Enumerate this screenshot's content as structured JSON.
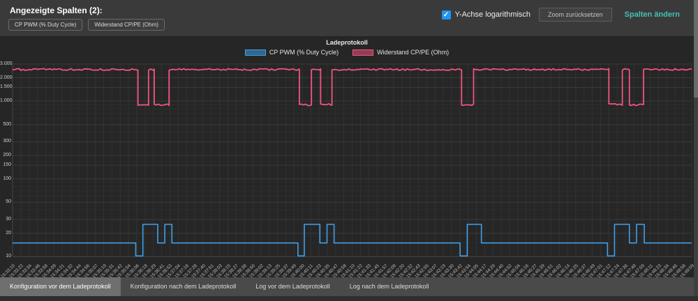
{
  "header": {
    "title": "Angezeigte Spalten (2):",
    "chips": [
      "CP PWM (% Duty Cycle)",
      "Widerstand CP/PE (Ohm)"
    ],
    "log_checkbox_label": "Y-Achse logarithmisch",
    "log_checkbox_checked": true,
    "checkmark": "✓",
    "zoom_reset_label": "Zoom zurücksetzen",
    "change_columns_label": "Spalten ändern",
    "accent_color": "#45c0b4",
    "checkbox_color": "#2196f3"
  },
  "tabs": {
    "items": [
      {
        "label": "Konfiguration vor dem Ladeprotokoll",
        "active": true
      },
      {
        "label": "Konfiguration nach dem Ladeprotokoll",
        "active": false
      },
      {
        "label": "Log vor dem Ladeprotokoll",
        "active": false
      },
      {
        "label": "Log nach dem Ladeprotokoll",
        "active": false
      }
    ]
  },
  "chart_data": {
    "type": "line",
    "title": "Ladeprotokoll",
    "legend_position": "top",
    "y_axis": {
      "scale": "log",
      "min": 10,
      "max": 3000,
      "ticks": [
        {
          "value": 3000,
          "label": "3.000"
        },
        {
          "value": 2000,
          "label": "2.000"
        },
        {
          "value": 1500,
          "label": "1.500"
        },
        {
          "value": 1000,
          "label": "1.000"
        },
        {
          "value": 500,
          "label": "500"
        },
        {
          "value": 300,
          "label": "300"
        },
        {
          "value": 200,
          "label": "200"
        },
        {
          "value": 150,
          "label": "150"
        },
        {
          "value": 100,
          "label": "100"
        },
        {
          "value": 50,
          "label": "50"
        },
        {
          "value": 30,
          "label": "30"
        },
        {
          "value": 20,
          "label": "20"
        },
        {
          "value": 10,
          "label": "10"
        }
      ],
      "minor_ticks": [
        15,
        40,
        60,
        70,
        80,
        90,
        400,
        600,
        700,
        800,
        900
      ]
    },
    "x_labels": [
      "15:33:10",
      "15:33:22",
      "15:33:34",
      "15:33:46",
      "15:33:58",
      "15:34:09",
      "15:34:21",
      "15:34:32",
      "15:34:44",
      "15:34:56",
      "15:35:07",
      "15:35:19",
      "15:35:31",
      "15:35:42",
      "15:35:54",
      "15:36:06",
      "15:36:18",
      "15:36:29",
      "15:36:41",
      "15:36:53",
      "15:37:04",
      "15:37:16",
      "15:37:28",
      "15:37:40",
      "15:37:51",
      "15:38:03",
      "15:38:15",
      "15:38:27",
      "15:38:38",
      "15:38:50",
      "15:39:02",
      "15:39:13",
      "15:39:25",
      "15:39:37",
      "15:39:49",
      "15:40:00",
      "15:40:11",
      "15:40:23",
      "15:40:35",
      "15:40:47",
      "15:40:58",
      "15:41:10",
      "15:41:22",
      "15:41:33",
      "15:41:45",
      "15:41:57",
      "15:42:08",
      "15:42:20",
      "15:42:32",
      "15:42:43",
      "15:42:55",
      "15:43:07",
      "15:43:19",
      "15:43:30",
      "15:43:42",
      "15:43:54",
      "15:44:05",
      "15:44:17",
      "15:44:29",
      "15:44:40",
      "15:44:52",
      "15:45:04",
      "15:45:16",
      "15:45:27",
      "15:45:39",
      "15:45:51",
      "15:46:02",
      "15:46:14",
      "15:46:25",
      "15:46:37",
      "15:46:49",
      "15:47:01",
      "15:47:12",
      "15:47:24",
      "15:47:36",
      "15:47:48",
      "15:47:59",
      "15:48:11",
      "15:48:23",
      "15:48:34",
      "15:48:46",
      "15:48:58",
      "15:49:09"
    ],
    "series": [
      {
        "name": "CP PWM (% Duty Cycle)",
        "color": "#3fa0e8",
        "unit": "%",
        "noisy": false,
        "line_width": 1.6,
        "segments": [
          {
            "from": "15:33:10",
            "to": "15:36:04",
            "value": 15
          },
          {
            "from": "15:36:04",
            "to": "15:36:14",
            "value": 10.2
          },
          {
            "from": "15:36:14",
            "to": "15:36:35",
            "value": 26
          },
          {
            "from": "15:36:35",
            "to": "15:36:45",
            "value": 15
          },
          {
            "from": "15:36:45",
            "to": "15:36:55",
            "value": 26
          },
          {
            "from": "15:36:55",
            "to": "15:39:53",
            "value": 15
          },
          {
            "from": "15:39:53",
            "to": "15:40:02",
            "value": 10.2
          },
          {
            "from": "15:40:02",
            "to": "15:40:24",
            "value": 26
          },
          {
            "from": "15:40:24",
            "to": "15:40:34",
            "value": 15
          },
          {
            "from": "15:40:34",
            "to": "15:40:44",
            "value": 26
          },
          {
            "from": "15:40:44",
            "to": "15:43:42",
            "value": 15
          },
          {
            "from": "15:43:42",
            "to": "15:43:52",
            "value": 10.2
          },
          {
            "from": "15:43:52",
            "to": "15:44:12",
            "value": 26
          },
          {
            "from": "15:44:12",
            "to": "15:47:10",
            "value": 15
          },
          {
            "from": "15:47:10",
            "to": "15:47:20",
            "value": 10.2
          },
          {
            "from": "15:47:20",
            "to": "15:47:41",
            "value": 26
          },
          {
            "from": "15:47:41",
            "to": "15:47:51",
            "value": 15
          },
          {
            "from": "15:47:51",
            "to": "15:48:02",
            "value": 26
          },
          {
            "from": "15:48:02",
            "to": "15:49:09",
            "value": 15
          }
        ]
      },
      {
        "name": "Widerstand CP/PE (Ohm)",
        "color": "#f0557e",
        "unit": "Ohm",
        "noisy": true,
        "line_width": 1.8,
        "segments": [
          {
            "from": "15:33:10",
            "to": "15:36:07",
            "value": 2550
          },
          {
            "from": "15:36:07",
            "to": "15:36:22",
            "value": 900
          },
          {
            "from": "15:36:22",
            "to": "15:36:30",
            "value": 2550
          },
          {
            "from": "15:36:30",
            "to": "15:36:51",
            "value": 900
          },
          {
            "from": "15:36:51",
            "to": "15:39:55",
            "value": 2550
          },
          {
            "from": "15:39:55",
            "to": "15:40:12",
            "value": 900
          },
          {
            "from": "15:40:12",
            "to": "15:40:25",
            "value": 2550
          },
          {
            "from": "15:40:25",
            "to": "15:40:41",
            "value": 900
          },
          {
            "from": "15:40:41",
            "to": "15:43:44",
            "value": 2550
          },
          {
            "from": "15:43:44",
            "to": "15:44:01",
            "value": 900
          },
          {
            "from": "15:44:01",
            "to": "15:47:12",
            "value": 2550
          },
          {
            "from": "15:47:12",
            "to": "15:47:31",
            "value": 900
          },
          {
            "from": "15:47:31",
            "to": "15:47:41",
            "value": 2550
          },
          {
            "from": "15:47:41",
            "to": "15:48:01",
            "value": 900
          },
          {
            "from": "15:48:01",
            "to": "15:49:09",
            "value": 2550
          }
        ]
      }
    ]
  }
}
